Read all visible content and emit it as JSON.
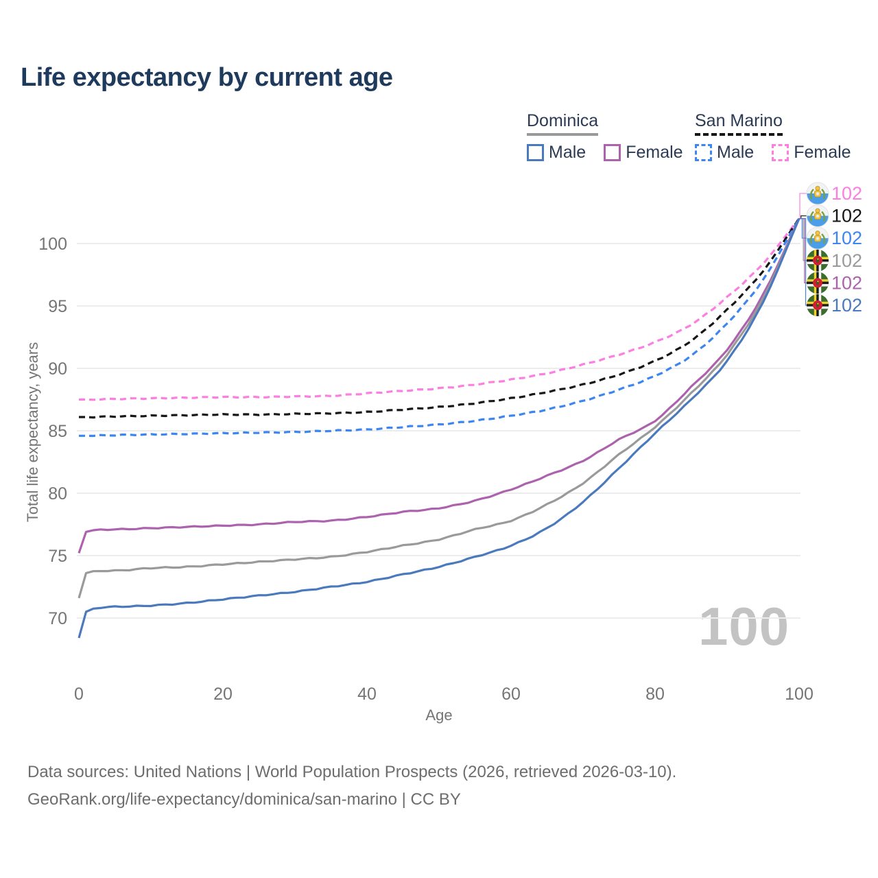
{
  "title": "Life expectancy by current age",
  "legend": {
    "groups": [
      {
        "name": "Dominica",
        "line_style": "solid",
        "underline_color": "#9a9a9a",
        "items": [
          {
            "label": "Male",
            "color": "#4a7abd"
          },
          {
            "label": "Female",
            "color": "#ad62ad"
          }
        ]
      },
      {
        "name": "San Marino",
        "line_style": "dashed",
        "underline_color": "#161616",
        "items": [
          {
            "label": "Male",
            "color": "#3d85f0"
          },
          {
            "label": "Female",
            "color": "#fb7ee0"
          }
        ]
      }
    ]
  },
  "chart_data": {
    "type": "line",
    "title": "Life expectancy by current age",
    "xlabel": "Age",
    "ylabel": "Total life expectancy, years",
    "x_ticks": [
      0,
      20,
      40,
      60,
      80,
      100
    ],
    "y_ticks": [
      70,
      75,
      80,
      85,
      90,
      95,
      100
    ],
    "xlim": [
      0,
      100
    ],
    "ylim": [
      67.5,
      103.5
    ],
    "grid": "horizontal",
    "x": [
      0,
      1,
      5,
      10,
      15,
      20,
      25,
      30,
      35,
      40,
      45,
      50,
      55,
      60,
      65,
      70,
      75,
      80,
      85,
      90,
      95,
      100
    ],
    "series": [
      {
        "id": "sm_female",
        "name": "San Marino Female",
        "country": "San Marino",
        "sex": "Female",
        "color": "#fb7ee0",
        "dashed": true,
        "end_label": "102",
        "values": [
          87.5,
          87.5,
          87.55,
          87.6,
          87.65,
          87.7,
          87.7,
          87.75,
          87.8,
          88.0,
          88.2,
          88.4,
          88.7,
          89.1,
          89.6,
          90.3,
          91.1,
          92.1,
          93.5,
          95.7,
          98.4,
          102
        ]
      },
      {
        "id": "sm_both",
        "name": "San Marino",
        "country": "San Marino",
        "sex": "Both",
        "color": "#161616",
        "dashed": true,
        "end_label": "102",
        "values": [
          86.1,
          86.1,
          86.15,
          86.2,
          86.25,
          86.3,
          86.3,
          86.35,
          86.4,
          86.5,
          86.7,
          86.9,
          87.2,
          87.6,
          88.1,
          88.7,
          89.5,
          90.6,
          92.2,
          94.7,
          97.8,
          102
        ]
      },
      {
        "id": "sm_male",
        "name": "San Marino Male",
        "country": "San Marino",
        "sex": "Male",
        "color": "#3d85f0",
        "dashed": true,
        "end_label": "102",
        "values": [
          84.6,
          84.6,
          84.65,
          84.7,
          84.75,
          84.8,
          84.85,
          84.9,
          85.0,
          85.1,
          85.3,
          85.5,
          85.8,
          86.2,
          86.7,
          87.4,
          88.3,
          89.4,
          91.0,
          93.6,
          97.1,
          102
        ]
      },
      {
        "id": "dom_female",
        "name": "Dominica Female",
        "country": "Dominica",
        "sex": "Female",
        "color": "#ad62ad",
        "dashed": false,
        "end_label": "102",
        "values": [
          75.2,
          76.9,
          77.1,
          77.2,
          77.3,
          77.4,
          77.5,
          77.7,
          77.8,
          78.1,
          78.5,
          78.8,
          79.4,
          80.3,
          81.4,
          82.6,
          84.3,
          85.8,
          88.5,
          91.5,
          95.9,
          102
        ]
      },
      {
        "id": "dom_both",
        "name": "Dominica",
        "country": "Dominica",
        "sex": "Both",
        "color": "#9a9a9a",
        "dashed": false,
        "end_label": "102",
        "values": [
          71.6,
          73.6,
          73.8,
          74.0,
          74.1,
          74.3,
          74.5,
          74.7,
          74.9,
          75.3,
          75.8,
          76.3,
          77.1,
          77.8,
          79.1,
          80.8,
          83.1,
          85.3,
          88.0,
          91.1,
          95.6,
          102
        ]
      },
      {
        "id": "dom_male",
        "name": "Dominica Male",
        "country": "Dominica",
        "sex": "Male",
        "color": "#4a7abd",
        "dashed": false,
        "end_label": "102",
        "values": [
          68.4,
          70.5,
          70.9,
          71.0,
          71.2,
          71.5,
          71.8,
          72.1,
          72.5,
          72.9,
          73.5,
          74.1,
          74.9,
          75.8,
          77.2,
          79.3,
          82.0,
          84.8,
          87.5,
          90.6,
          95.3,
          102
        ]
      }
    ],
    "end_labels_order": [
      "sm_female",
      "sm_both",
      "sm_male",
      "dom_both",
      "dom_female",
      "dom_male"
    ],
    "legend_position": "top-right"
  },
  "watermark": "100",
  "footer": {
    "line1": "Data sources: United Nations | World Population Prospects (2026, retrieved 2026-03-10).",
    "line2": "GeoRank.org/life-expectancy/dominica/san-marino | CC BY"
  }
}
